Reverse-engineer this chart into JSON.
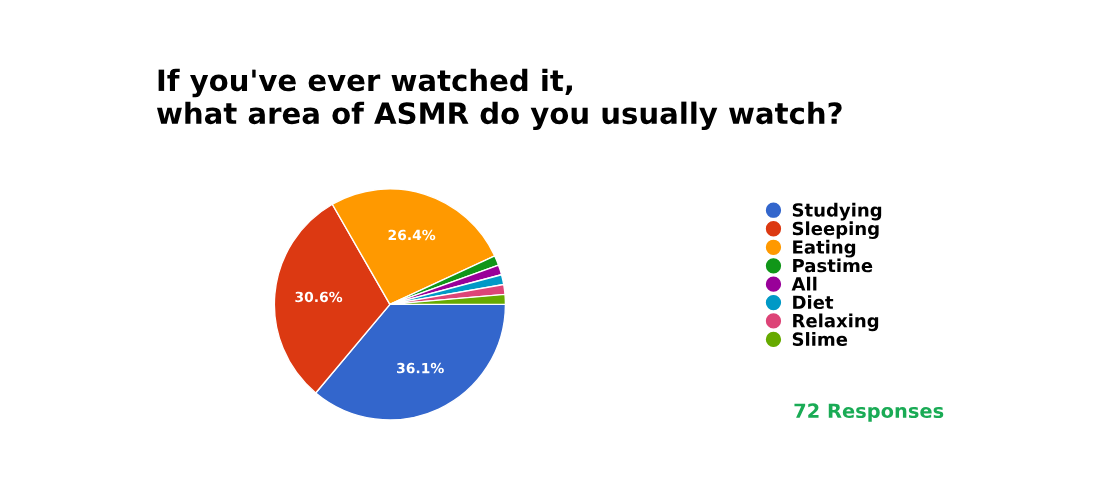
{
  "chart_data": {
    "type": "pie",
    "title": "If you've ever watched it,\nwhat area of ASMR do you usually watch?",
    "categories": [
      "Studying",
      "Sleeping",
      "Eating",
      "Pastime",
      "All",
      "Diet",
      "Relaxing",
      "Slime"
    ],
    "values": [
      36.1,
      30.6,
      26.4,
      1.38,
      1.38,
      1.38,
      1.38,
      1.38
    ],
    "colors": [
      "#3366cc",
      "#dc3912",
      "#ff9900",
      "#109618",
      "#990099",
      "#0099c6",
      "#dd4477",
      "#66aa00"
    ],
    "value_labels": [
      "36.1%",
      "30.6%",
      "26.4%",
      null,
      null,
      null,
      null,
      null
    ],
    "legend": "right",
    "annotations": [
      "72 Responses"
    ]
  }
}
